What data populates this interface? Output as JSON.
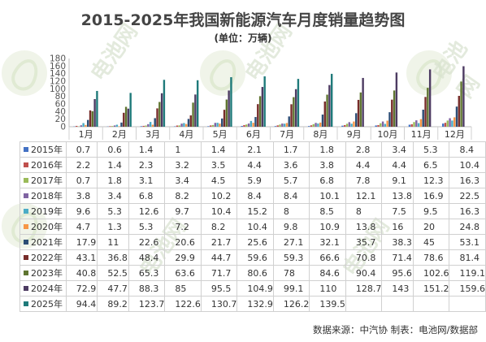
{
  "title": "2015-2025年我国新能源汽车月度销量趋势图",
  "subtitle": "(单位：万辆)",
  "source": "数据来源：中汽协  制表：电池网/数据部",
  "watermark": "电池网",
  "chart_data": {
    "type": "bar",
    "categories": [
      "1月",
      "2月",
      "3月",
      "4月",
      "5月",
      "6月",
      "7月",
      "8月",
      "9月",
      "10月",
      "11月",
      "12月"
    ],
    "ylim": [
      0,
      180
    ],
    "yticks": [
      0,
      20,
      40,
      60,
      80,
      100,
      120,
      140,
      160,
      180
    ],
    "grid": false,
    "legend": "table-rows",
    "series": [
      {
        "name": "2015年",
        "color": "#4472c4",
        "values": [
          0.7,
          0.6,
          1.4,
          1.0,
          1.4,
          2.1,
          1.7,
          1.8,
          2.8,
          3.4,
          5.3,
          8.4
        ]
      },
      {
        "name": "2016年",
        "color": "#c0504d",
        "values": [
          2.2,
          1.4,
          2.3,
          3.2,
          3.5,
          4.4,
          3.6,
          3.8,
          4.4,
          4.4,
          6.5,
          10.4
        ]
      },
      {
        "name": "2017年",
        "color": "#9bbb59",
        "values": [
          0.7,
          1.8,
          3.1,
          3.4,
          4.5,
          5.9,
          5.7,
          6.8,
          7.8,
          9.1,
          12.3,
          16.3
        ]
      },
      {
        "name": "2018年",
        "color": "#8064a2",
        "values": [
          3.8,
          3.4,
          6.8,
          8.2,
          10.2,
          8.4,
          8.4,
          10.1,
          12.1,
          13.8,
          16.9,
          22.5
        ]
      },
      {
        "name": "2019年",
        "color": "#4bacc6",
        "values": [
          9.6,
          5.3,
          12.6,
          9.7,
          10.4,
          15.2,
          8,
          8.5,
          8,
          7.5,
          9.5,
          16.3
        ]
      },
      {
        "name": "2020年",
        "color": "#f79646",
        "values": [
          4.7,
          1.3,
          5.3,
          7.2,
          8.2,
          10.4,
          9.8,
          10.9,
          13.8,
          16,
          20,
          24.8
        ]
      },
      {
        "name": "2021年",
        "color": "#2c4d75",
        "values": [
          17.9,
          11,
          22.6,
          20.6,
          21.7,
          25.6,
          27.1,
          32.1,
          35.7,
          38.3,
          45,
          53.1
        ]
      },
      {
        "name": "2022年",
        "color": "#772c2a",
        "values": [
          43.1,
          36.8,
          48.4,
          29.9,
          44.7,
          59.6,
          59.3,
          66.6,
          70.8,
          71.4,
          78.6,
          81.4
        ]
      },
      {
        "name": "2023年",
        "color": "#5f7530",
        "values": [
          40.8,
          52.5,
          65.3,
          63.6,
          71.7,
          80.6,
          78,
          84.6,
          90.4,
          95.6,
          102.6,
          119.1
        ]
      },
      {
        "name": "2024年",
        "color": "#4d3b62",
        "values": [
          72.9,
          47.7,
          88.3,
          85,
          95.5,
          104.9,
          99.1,
          110,
          128.7,
          143,
          151.2,
          159.6
        ]
      },
      {
        "name": "2025年",
        "color": "#1f7a7a",
        "values": [
          94.4,
          89.2,
          123.7,
          122.6,
          130.7,
          132.9,
          126.2,
          139.5,
          null,
          null,
          null,
          null
        ]
      }
    ]
  }
}
